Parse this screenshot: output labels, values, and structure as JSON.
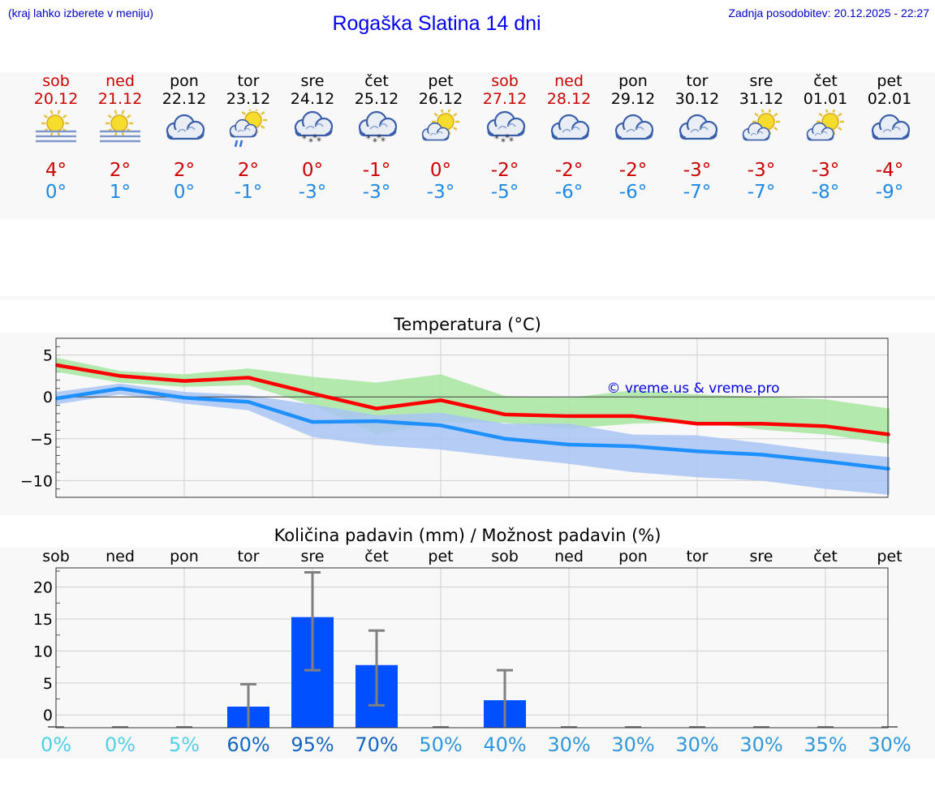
{
  "header": {
    "hint": "(kraj lahko izberete v meniju)",
    "title": "Rogaška Slatina 14 dni",
    "updated": "Zadnja posodobitev: 20.12.2025 - 22:27"
  },
  "colors": {
    "weekend": "#cc0000",
    "tmax": "#cc0000",
    "tmin": "#1e88e5",
    "bar": "#0050ff",
    "line_max": "#ff0000",
    "line_min": "#1e90ff",
    "band_max": "#a8e6a1",
    "band_min": "#a9c4f5"
  },
  "days": [
    {
      "name": "sob",
      "date": "20.12",
      "icon": "sun-fog-icon",
      "tmax": "4°",
      "tmin": "0°",
      "weekend": true
    },
    {
      "name": "ned",
      "date": "21.12",
      "icon": "sun-fog-icon",
      "tmax": "2°",
      "tmin": "1°",
      "weekend": true
    },
    {
      "name": "pon",
      "date": "22.12",
      "icon": "cloudy-icon",
      "tmax": "2°",
      "tmin": "0°",
      "weekend": false
    },
    {
      "name": "tor",
      "date": "23.12",
      "icon": "sun-cloud-rain-icon",
      "tmax": "2°",
      "tmin": "-1°",
      "weekend": false
    },
    {
      "name": "sre",
      "date": "24.12",
      "icon": "cloud-snow-icon",
      "tmax": "0°",
      "tmin": "-3°",
      "weekend": false
    },
    {
      "name": "čet",
      "date": "25.12",
      "icon": "cloud-snow-icon",
      "tmax": "-1°",
      "tmin": "-3°",
      "weekend": false
    },
    {
      "name": "pet",
      "date": "26.12",
      "icon": "sun-cloud-icon",
      "tmax": "0°",
      "tmin": "-3°",
      "weekend": false
    },
    {
      "name": "sob",
      "date": "27.12",
      "icon": "cloud-snow-icon",
      "tmax": "-2°",
      "tmin": "-5°",
      "weekend": true
    },
    {
      "name": "ned",
      "date": "28.12",
      "icon": "cloudy-icon",
      "tmax": "-2°",
      "tmin": "-6°",
      "weekend": true
    },
    {
      "name": "pon",
      "date": "29.12",
      "icon": "cloudy-icon",
      "tmax": "-2°",
      "tmin": "-6°",
      "weekend": false
    },
    {
      "name": "tor",
      "date": "30.12",
      "icon": "cloudy-icon",
      "tmax": "-3°",
      "tmin": "-7°",
      "weekend": false
    },
    {
      "name": "sre",
      "date": "31.12",
      "icon": "sun-cloud-icon",
      "tmax": "-3°",
      "tmin": "-7°",
      "weekend": false
    },
    {
      "name": "čet",
      "date": "01.01",
      "icon": "sun-cloud-icon",
      "tmax": "-3°",
      "tmin": "-8°",
      "weekend": false
    },
    {
      "name": "pet",
      "date": "02.01",
      "icon": "cloudy-icon",
      "tmax": "-4°",
      "tmin": "-9°",
      "weekend": false
    }
  ],
  "chart_data": [
    {
      "type": "line",
      "title": "Temperatura (°C)",
      "watermark": "© vreme.us & vreme.pro",
      "ylim": [
        -12,
        7
      ],
      "yticks": [
        5,
        0,
        -5,
        -10
      ],
      "ytick_labels": [
        "5",
        "0",
        "−5",
        "−10"
      ],
      "x": [
        0,
        1,
        2,
        3,
        4,
        5,
        6,
        7,
        8,
        9,
        10,
        11,
        12,
        13
      ],
      "grid": true,
      "series": [
        {
          "name": "max",
          "values": [
            3.8,
            2.5,
            1.9,
            2.3,
            0.4,
            -1.4,
            -0.4,
            -2.1,
            -2.3,
            -2.3,
            -3.2,
            -3.2,
            -3.5,
            -4.5
          ]
        },
        {
          "name": "min",
          "values": [
            -0.2,
            1.0,
            -0.1,
            -0.6,
            -3.0,
            -2.9,
            -3.4,
            -5.0,
            -5.7,
            -5.9,
            -6.5,
            -6.9,
            -7.7,
            -8.6
          ]
        },
        {
          "name": "max_range",
          "upper": [
            4.7,
            3.1,
            2.7,
            3.4,
            2.4,
            1.7,
            2.7,
            0.1,
            -0.1,
            0.8,
            0.3,
            0.0,
            -0.3,
            -1.4
          ],
          "lower": [
            3.0,
            1.7,
            1.2,
            1.4,
            -1.0,
            -4.5,
            -3.0,
            -3.1,
            -3.8,
            -3.2,
            -3.0,
            -3.9,
            -4.5,
            -5.6
          ]
        },
        {
          "name": "min_range",
          "upper": [
            0.6,
            1.6,
            0.6,
            0.2,
            -0.9,
            -2.2,
            -1.9,
            -3.2,
            -3.2,
            -4.5,
            -4.6,
            -5.5,
            -6.5,
            -7.2
          ],
          "lower": [
            -0.9,
            0.3,
            -0.8,
            -1.6,
            -4.8,
            -5.8,
            -6.3,
            -7.2,
            -8.0,
            -9.0,
            -9.6,
            -10.0,
            -11.0,
            -11.7
          ]
        }
      ]
    },
    {
      "type": "bar",
      "title": "Količina padavin (mm) / Možnost padavin (%)",
      "categories": [
        "sob",
        "ned",
        "pon",
        "tor",
        "sre",
        "čet",
        "pet",
        "sob",
        "ned",
        "pon",
        "tor",
        "sre",
        "čet",
        "pet"
      ],
      "ylim": [
        -2,
        23
      ],
      "yticks": [
        20,
        15,
        10,
        5,
        0
      ],
      "ytick_labels": [
        "20",
        "15",
        "10",
        "5",
        "0"
      ],
      "values": [
        0,
        0,
        0,
        1.3,
        15.3,
        7.8,
        0,
        2.3,
        0,
        0,
        0,
        0,
        0,
        0
      ],
      "error_low": [
        0,
        0,
        0,
        0,
        7.0,
        1.5,
        0,
        0,
        0,
        0,
        0,
        0,
        0,
        0
      ],
      "error_high": [
        0,
        0,
        0,
        4.8,
        22.3,
        13.2,
        0,
        7.0,
        0,
        0,
        0,
        0,
        0,
        0
      ],
      "probability": [
        "0%",
        "0%",
        "5%",
        "60%",
        "95%",
        "70%",
        "50%",
        "40%",
        "30%",
        "30%",
        "30%",
        "30%",
        "35%",
        "30%"
      ],
      "probability_values": [
        0,
        0,
        5,
        60,
        95,
        70,
        50,
        40,
        30,
        30,
        30,
        30,
        35,
        30
      ]
    }
  ]
}
